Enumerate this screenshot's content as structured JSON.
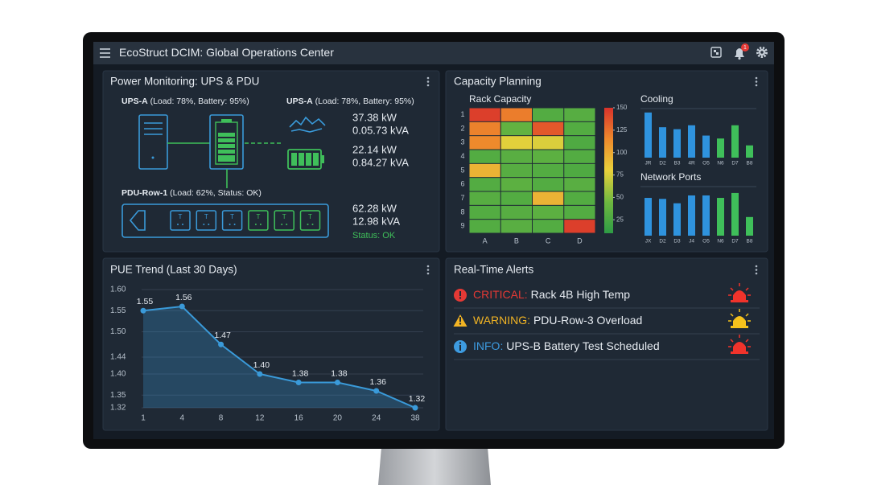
{
  "header": {
    "title": "EcoStruct DCIM: Global Operations Center",
    "notification_count": "1"
  },
  "power": {
    "title": "Power Monitoring: UPS & PDU",
    "ups_left": {
      "name": "UPS-A",
      "detail": "(Load: 78%, Battery: 95%)"
    },
    "ups_right": {
      "name": "UPS-A",
      "detail": "(Load: 78%, Battery: 95%)"
    },
    "readings": [
      "37.38 kW",
      "0.05.73 kVA",
      "22.14 kW",
      "0.84.27 kVA"
    ],
    "pdu": {
      "name": "PDU-Row-1",
      "detail": "(Load: 62%, Status: OK)",
      "outlets": [
        "T",
        "T",
        "T",
        "T",
        "T",
        "T"
      ],
      "outlet_colors": [
        "#3a9ad9",
        "#3a9ad9",
        "#3a9ad9",
        "#3fbf5a",
        "#3fbf5a",
        "#3fbf5a"
      ],
      "readings": [
        "62.28 kW",
        "12.98 kVA"
      ],
      "status": "Status: OK"
    }
  },
  "capacity": {
    "title": "Capacity Planning",
    "heatmap": {
      "type": "heatmap",
      "title": "Rack Capacity",
      "rows": [
        "1",
        "2",
        "3",
        "4",
        "5",
        "6",
        "7",
        "8",
        "9"
      ],
      "columns": [
        "A",
        "B",
        "C",
        "D"
      ],
      "values": [
        [
          145,
          120,
          30,
          32
        ],
        [
          118,
          38,
          135,
          30
        ],
        [
          115,
          78,
          76,
          28
        ],
        [
          30,
          33,
          35,
          30
        ],
        [
          95,
          32,
          30,
          28
        ],
        [
          30,
          35,
          30,
          33
        ],
        [
          32,
          30,
          95,
          30
        ],
        [
          30,
          32,
          35,
          30
        ],
        [
          30,
          33,
          30,
          145
        ]
      ],
      "clim": [
        10,
        150
      ],
      "cticks": [
        150,
        125,
        100,
        75,
        50,
        25
      ],
      "colors": [
        "#2e9b45",
        "#6fb840",
        "#e9d13b",
        "#ee8a2c",
        "#d9322b"
      ]
    },
    "cooling": {
      "type": "bar",
      "title": "Cooling",
      "categories": [
        "JR",
        "D2",
        "B3",
        "4R",
        "O5",
        "N6",
        "D7",
        "B8"
      ],
      "values": [
        92,
        62,
        58,
        66,
        45,
        39,
        66,
        25
      ],
      "colors": [
        "#2f93de",
        "#2f93de",
        "#2f93de",
        "#2f93de",
        "#2f93de",
        "#3fbf5a",
        "#3fbf5a",
        "#3fbf5a"
      ],
      "ylim": [
        0,
        100
      ]
    },
    "network": {
      "type": "bar",
      "title": "Network Ports",
      "categories": [
        "JX",
        "D2",
        "D3",
        "J4",
        "O5",
        "N6",
        "D7",
        "B8"
      ],
      "values": [
        77,
        75,
        66,
        82,
        82,
        77,
        87,
        38
      ],
      "colors": [
        "#2f93de",
        "#2f93de",
        "#2f93de",
        "#2f93de",
        "#2f93de",
        "#3fbf5a",
        "#3fbf5a",
        "#3fbf5a"
      ],
      "ylim": [
        0,
        100
      ]
    }
  },
  "pue": {
    "title": "PUE Trend (Last 30 Days)",
    "chart": {
      "type": "line",
      "categories": [
        "1",
        "4",
        "8",
        "12",
        "16",
        "20",
        "24",
        "38"
      ],
      "values": [
        1.55,
        1.56,
        1.47,
        1.4,
        1.38,
        1.38,
        1.36,
        1.32
      ],
      "value_labels": [
        "1.55",
        "1.56",
        "1.47",
        "1.40",
        "1.38",
        "1.38",
        "1.36",
        "1.32"
      ],
      "ylim": [
        1.32,
        1.6
      ],
      "yticks": [
        {
          "value": 1.6,
          "label": "1.60"
        },
        1.55,
        {
          "value": 1.5,
          "label": "1.50"
        },
        1.44,
        {
          "value": 1.4,
          "label": "1.40"
        },
        1.35,
        1.32
      ],
      "color": "#3a9ad9",
      "grid": true
    }
  },
  "alerts": {
    "title": "Real-Time Alerts",
    "items": [
      {
        "level": "CRITICAL:",
        "message": "Rack 4B High Temp",
        "color": "#e53935",
        "icon": "critical",
        "siren_color": "#f0332b"
      },
      {
        "level": "WARNING:",
        "message": "PDU-Row-3 Overload",
        "color": "#f2b424",
        "icon": "warning",
        "siren_color": "#f5c21c"
      },
      {
        "level": "INFO:",
        "message": "UPS-B Battery Test Scheduled",
        "color": "#3d9be0",
        "icon": "info",
        "siren_color": "#f0332b"
      }
    ]
  }
}
